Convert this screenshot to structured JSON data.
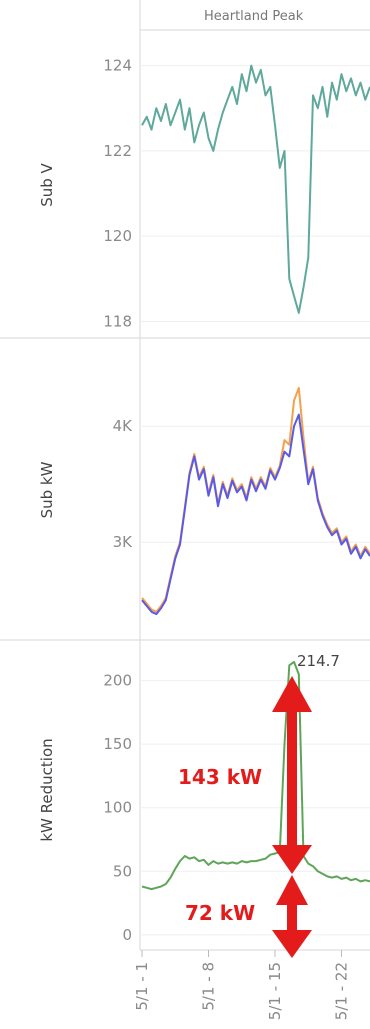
{
  "header": {
    "title": "Heartland Peak"
  },
  "chart_data": [
    {
      "type": "line",
      "ylabel": "Sub V",
      "ylim": [
        117.8,
        124.6
      ],
      "yticks": [
        118,
        120,
        122,
        124
      ],
      "ytick_labels": [
        "118",
        "120",
        "122",
        "124"
      ],
      "grid": true,
      "series": [
        {
          "color": "#5fa89c",
          "x": [
            0,
            0.5,
            1,
            1.5,
            2,
            2.5,
            3,
            3.5,
            4,
            4.5,
            5,
            5.5,
            6,
            6.5,
            7,
            7.5,
            8,
            8.5,
            9,
            9.5,
            10,
            10.5,
            11,
            11.5,
            12,
            12.5,
            13,
            13.5,
            14,
            14.5,
            15,
            15.5,
            16,
            16.5,
            17,
            17.5,
            18,
            18.5,
            19,
            19.5,
            20,
            20.5,
            21,
            21.5,
            22,
            22.5,
            23,
            23.5,
            24
          ],
          "values": [
            122.6,
            122.8,
            122.5,
            123.0,
            122.7,
            123.1,
            122.6,
            122.9,
            123.2,
            122.5,
            123.0,
            122.2,
            122.6,
            122.9,
            122.3,
            122.0,
            122.5,
            122.9,
            123.2,
            123.5,
            123.1,
            123.8,
            123.4,
            124.0,
            123.6,
            123.9,
            123.3,
            123.5,
            122.6,
            121.6,
            122.0,
            119.0,
            118.6,
            118.2,
            118.8,
            119.5,
            123.3,
            123.0,
            123.5,
            122.8,
            123.6,
            123.2,
            123.8,
            123.4,
            123.7,
            123.3,
            123.6,
            123.2,
            123.5
          ]
        }
      ]
    },
    {
      "type": "line",
      "ylabel": "Sub kW",
      "ylim": [
        2200,
        4700
      ],
      "yticks": [
        3000,
        4000
      ],
      "ytick_labels": [
        "3K",
        "4K"
      ],
      "grid": true,
      "series": [
        {
          "color": "#f5a04a",
          "x": [
            0,
            0.5,
            1,
            1.5,
            2,
            2.5,
            3,
            3.5,
            4,
            4.5,
            5,
            5.5,
            6,
            6.5,
            7,
            7.5,
            8,
            8.5,
            9,
            9.5,
            10,
            10.5,
            11,
            11.5,
            12,
            12.5,
            13,
            13.5,
            14,
            14.5,
            15,
            15.5,
            16,
            16.5,
            17,
            17.5,
            18,
            18.5,
            19,
            19.5,
            20,
            20.5,
            21,
            21.5,
            22,
            22.5,
            23,
            23.5,
            24
          ],
          "values": [
            2520,
            2470,
            2420,
            2400,
            2450,
            2520,
            2700,
            2880,
            3000,
            3300,
            3600,
            3760,
            3560,
            3650,
            3420,
            3580,
            3330,
            3520,
            3400,
            3550,
            3450,
            3500,
            3380,
            3560,
            3460,
            3560,
            3480,
            3640,
            3560,
            3660,
            3880,
            3840,
            4220,
            4330,
            3900,
            3520,
            3650,
            3380,
            3250,
            3150,
            3080,
            3120,
            3000,
            3050,
            2920,
            2980,
            2880,
            2960,
            2900
          ]
        },
        {
          "color": "#5a5ae8",
          "x": [
            0,
            0.5,
            1,
            1.5,
            2,
            2.5,
            3,
            3.5,
            4,
            4.5,
            5,
            5.5,
            6,
            6.5,
            7,
            7.5,
            8,
            8.5,
            9,
            9.5,
            10,
            10.5,
            11,
            11.5,
            12,
            12.5,
            13,
            13.5,
            14,
            14.5,
            15,
            15.5,
            16,
            16.5,
            17,
            17.5,
            18,
            18.5,
            19,
            19.5,
            20,
            20.5,
            21,
            21.5,
            22,
            22.5,
            23,
            23.5,
            24
          ],
          "values": [
            2500,
            2450,
            2400,
            2380,
            2430,
            2500,
            2680,
            2860,
            2980,
            3280,
            3580,
            3740,
            3540,
            3630,
            3400,
            3560,
            3310,
            3500,
            3380,
            3530,
            3430,
            3480,
            3360,
            3540,
            3440,
            3540,
            3460,
            3620,
            3540,
            3640,
            3780,
            3740,
            4000,
            4100,
            3800,
            3500,
            3630,
            3360,
            3230,
            3130,
            3060,
            3100,
            2980,
            3030,
            2900,
            2960,
            2860,
            2940,
            2880
          ]
        }
      ]
    },
    {
      "type": "line",
      "ylabel": "kW Reduction",
      "ylim": [
        -8,
        228
      ],
      "yticks": [
        0,
        50,
        100,
        150,
        200
      ],
      "ytick_labels": [
        "0",
        "50",
        "100",
        "150",
        "200"
      ],
      "grid": true,
      "peak_label": "214.7",
      "x_tick_labels": [
        "5/1 - 1",
        "5/1 - 8",
        "5/1 - 15",
        "5/1 - 22"
      ],
      "x_ticks": [
        0,
        7,
        14,
        21
      ],
      "annotations": {
        "upper": "143 kW",
        "lower": "72 kW",
        "color": "#e31b1b"
      },
      "series": [
        {
          "color": "#5ea55a",
          "x": [
            0,
            0.5,
            1,
            1.5,
            2,
            2.5,
            3,
            3.5,
            4,
            4.5,
            5,
            5.5,
            6,
            6.5,
            7,
            7.5,
            8,
            8.5,
            9,
            9.5,
            10,
            10.5,
            11,
            11.5,
            12,
            12.5,
            13,
            13.5,
            14,
            14.5,
            15,
            15.5,
            16,
            16.5,
            17,
            17.5,
            18,
            18.5,
            19,
            19.5,
            20,
            20.5,
            21,
            21.5,
            22,
            22.5,
            23,
            23.5,
            24
          ],
          "values": [
            38,
            37,
            36,
            37,
            38,
            40,
            45,
            52,
            58,
            62,
            60,
            61,
            58,
            59,
            55,
            58,
            56,
            57,
            56,
            57,
            56,
            58,
            57,
            58,
            58,
            59,
            60,
            63,
            64,
            65,
            150,
            212,
            214.7,
            205,
            62,
            56,
            54,
            50,
            48,
            46,
            45,
            46,
            44,
            45,
            43,
            44,
            42,
            43,
            42
          ]
        }
      ]
    }
  ]
}
